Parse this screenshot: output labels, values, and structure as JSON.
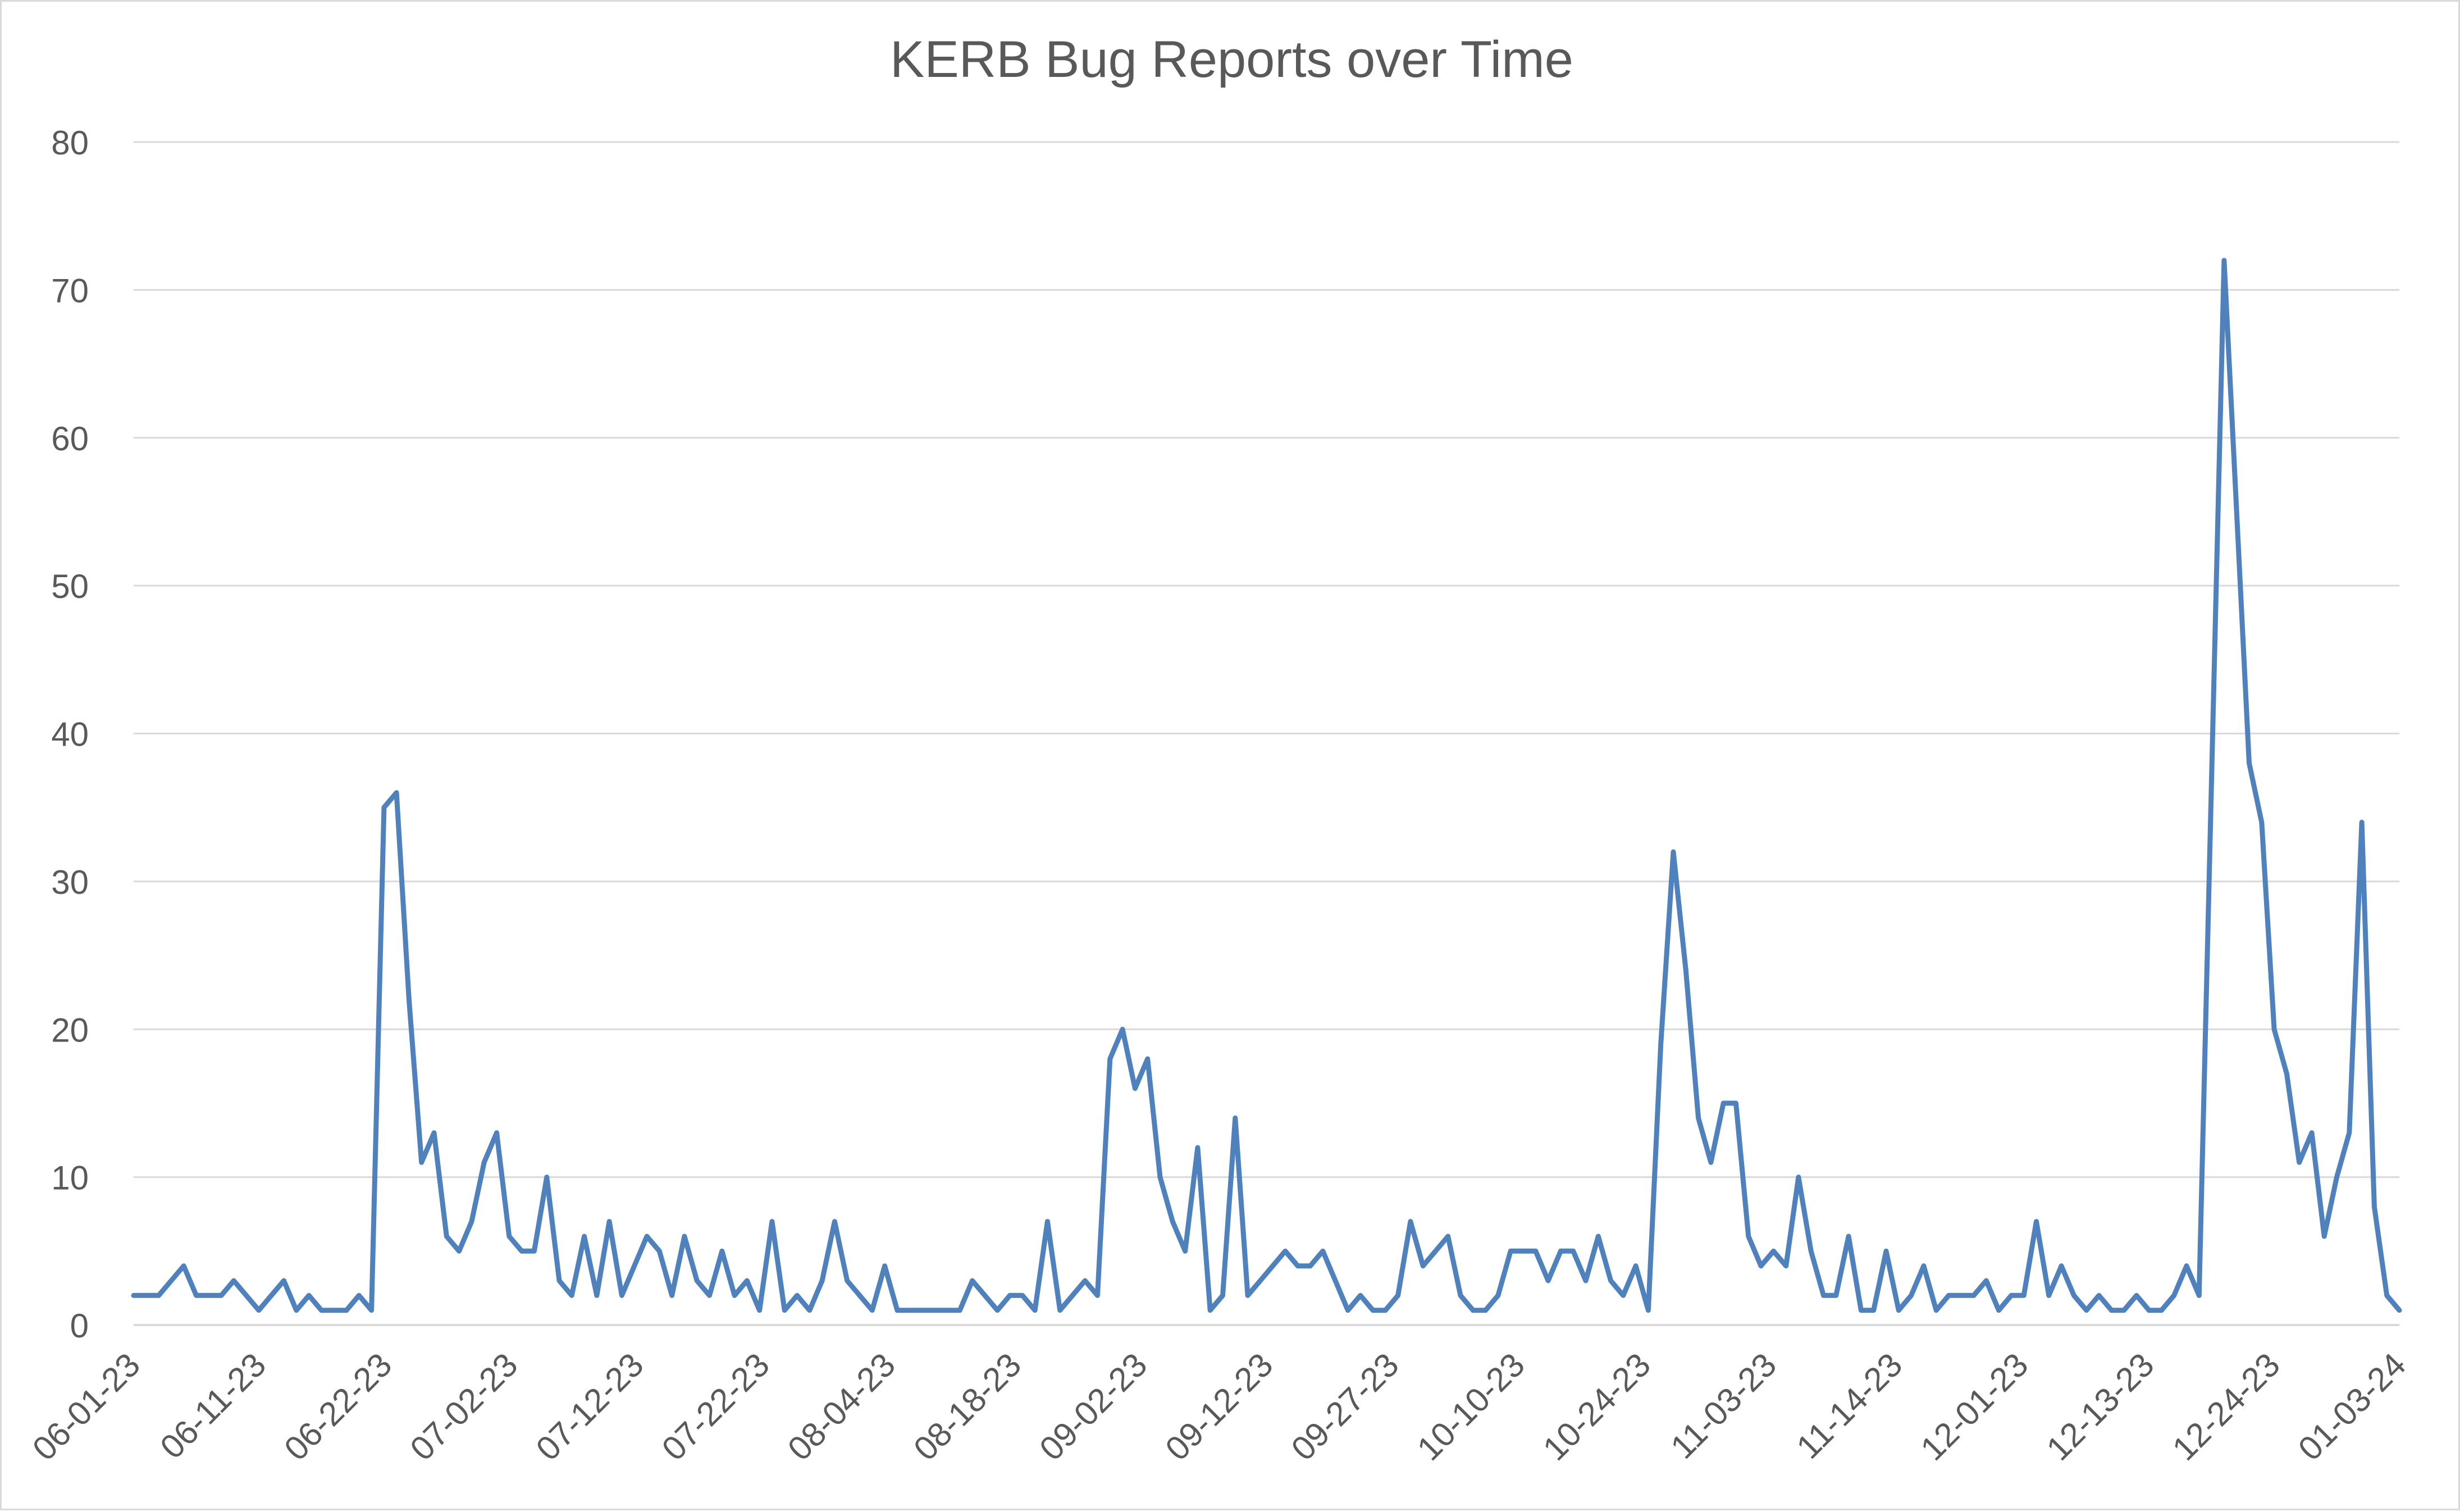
{
  "chart_data": {
    "type": "line",
    "title": "KERB Bug Reports over Time",
    "xlabel": "",
    "ylabel": "",
    "ylim": [
      0,
      80
    ],
    "yticks": [
      0,
      10,
      20,
      30,
      40,
      50,
      60,
      70,
      80
    ],
    "grid": true,
    "legend": "none",
    "colors": {
      "line": "#4f81bd",
      "grid": "#d9d9d9",
      "text": "#595959"
    },
    "x_tick_labels": [
      "06-01-23",
      "06-11-23",
      "06-22-23",
      "07-02-23",
      "07-12-23",
      "07-22-23",
      "08-04-23",
      "08-18-23",
      "09-02-23",
      "09-12-23",
      "09-27-23",
      "10-10-23",
      "10-24-23",
      "11-03-23",
      "11-14-23",
      "12-01-23",
      "12-13-23",
      "12-24-23",
      "01-03-24"
    ],
    "series": [
      {
        "values": [
          2,
          2,
          2,
          3,
          4,
          2,
          2,
          2,
          3,
          2,
          1,
          2,
          3,
          1,
          2,
          1,
          1,
          1,
          2,
          1,
          35,
          36,
          22,
          11,
          13,
          6,
          5,
          7,
          11,
          13,
          6,
          5,
          5,
          10,
          3,
          2,
          6,
          2,
          7,
          2,
          4,
          6,
          5,
          2,
          6,
          3,
          2,
          5,
          2,
          3,
          1,
          7,
          1,
          2,
          1,
          3,
          7,
          3,
          2,
          1,
          4,
          1,
          1,
          1,
          1,
          1,
          1,
          3,
          2,
          1,
          2,
          2,
          1,
          7,
          1,
          2,
          3,
          2,
          18,
          20,
          16,
          18,
          10,
          7,
          5,
          12,
          1,
          2,
          14,
          2,
          3,
          4,
          5,
          4,
          4,
          5,
          3,
          1,
          2,
          1,
          1,
          2,
          7,
          4,
          5,
          6,
          2,
          1,
          1,
          2,
          5,
          5,
          5,
          3,
          5,
          5,
          3,
          6,
          3,
          2,
          4,
          1,
          19,
          32,
          24,
          14,
          11,
          15,
          15,
          6,
          4,
          5,
          4,
          10,
          5,
          2,
          2,
          6,
          1,
          1,
          5,
          1,
          2,
          4,
          1,
          2,
          2,
          2,
          3,
          1,
          2,
          2,
          7,
          2,
          4,
          2,
          1,
          2,
          1,
          1,
          2,
          1,
          1,
          2,
          4,
          2,
          37,
          72,
          55,
          38,
          34,
          20,
          17,
          11,
          13,
          6,
          10,
          13,
          34,
          8,
          2,
          1
        ]
      }
    ]
  }
}
